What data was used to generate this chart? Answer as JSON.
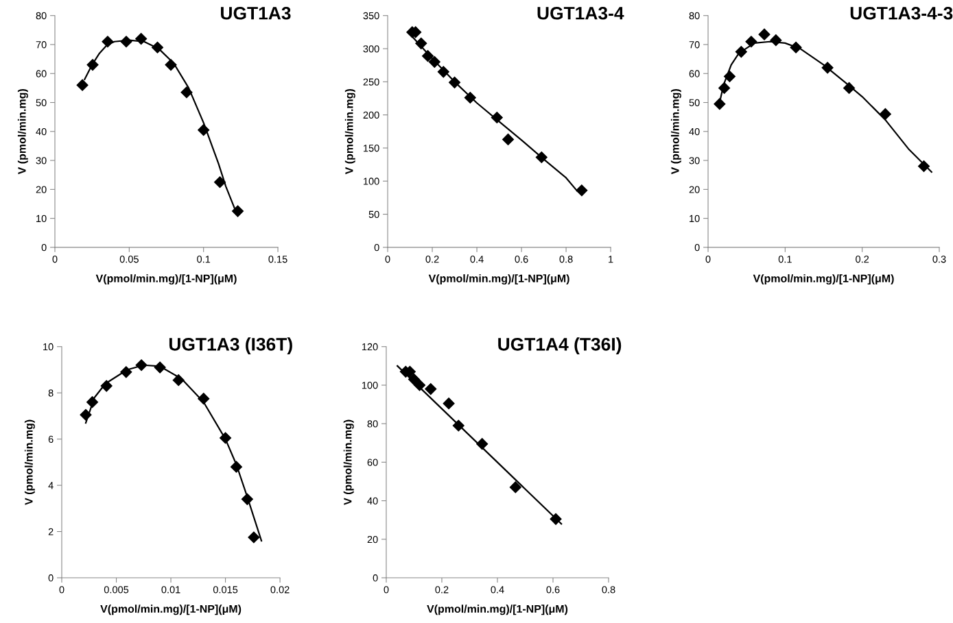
{
  "chart_data": [
    {
      "type": "scatter",
      "title": "UGT1A3",
      "xlabel": "V(pmol/min.mg)/[1-NP](μM)",
      "ylabel": "V (pmol/min.mg)",
      "xlim": [
        0,
        0.15
      ],
      "xticks": [
        0,
        0.05,
        0.1,
        0.15
      ],
      "ylim": [
        0,
        80
      ],
      "yticks": [
        0,
        10,
        20,
        30,
        40,
        50,
        60,
        70,
        80
      ],
      "grid": false,
      "series": [
        {
          "marker": "diamond",
          "color": "#000000",
          "x": [
            0.0185,
            0.0254,
            0.0355,
            0.048,
            0.058,
            0.069,
            0.078,
            0.0886,
            0.1,
            0.111,
            0.123
          ],
          "values": [
            56,
            63,
            71,
            71,
            72,
            69,
            63,
            53.5,
            40.5,
            22.5,
            12.5
          ]
        },
        {
          "type": "line",
          "marker": "none",
          "line_style": "solid",
          "color": "#000000",
          "x": [
            0.02,
            0.025,
            0.03,
            0.035,
            0.04,
            0.05,
            0.06,
            0.07,
            0.08,
            0.09,
            0.1,
            0.11,
            0.115,
            0.122
          ],
          "values": [
            58,
            63,
            67,
            69.8,
            71,
            71.5,
            71,
            68.5,
            63.5,
            55,
            43,
            29,
            21,
            12
          ]
        }
      ]
    },
    {
      "type": "scatter",
      "title": "UGT1A3-4",
      "xlabel": "V(pmol/min.mg)/[1-NP](μM)",
      "ylabel": "V (pmol/min.mg)",
      "xlim": [
        0,
        1
      ],
      "xticks": [
        0,
        0.2,
        0.4,
        0.6,
        0.8,
        1
      ],
      "ylim": [
        0,
        350
      ],
      "yticks": [
        0,
        50,
        100,
        150,
        200,
        250,
        300,
        350
      ],
      "grid": false,
      "series": [
        {
          "marker": "diamond",
          "color": "#000000",
          "x": [
            0.11,
            0.125,
            0.15,
            0.18,
            0.21,
            0.25,
            0.3,
            0.37,
            0.49,
            0.54,
            0.69,
            0.87
          ],
          "values": [
            325,
            325,
            308,
            289,
            280,
            265,
            249,
            226,
            196,
            163,
            136,
            86
          ]
        },
        {
          "type": "line",
          "marker": "none",
          "line_style": "solid",
          "color": "#000000",
          "x": [
            0.1,
            0.2,
            0.3,
            0.4,
            0.5,
            0.6,
            0.7,
            0.8,
            0.85
          ],
          "values": [
            322,
            285,
            250,
            218,
            190,
            162,
            133,
            105,
            85
          ]
        }
      ]
    },
    {
      "type": "scatter",
      "title": "UGT1A3-4-3",
      "xlabel": "V(pmol/min.mg)/[1-NP](μM)",
      "ylabel": "V (pmol/min.mg)",
      "xlim": [
        0,
        0.3
      ],
      "xticks": [
        0,
        0.1,
        0.2,
        0.3
      ],
      "ylim": [
        0,
        80
      ],
      "yticks": [
        0,
        10,
        20,
        30,
        40,
        50,
        60,
        70,
        80
      ],
      "grid": false,
      "series": [
        {
          "marker": "diamond",
          "color": "#000000",
          "x": [
            0.015,
            0.021,
            0.028,
            0.043,
            0.056,
            0.073,
            0.088,
            0.114,
            0.155,
            0.183,
            0.23,
            0.28
          ],
          "values": [
            49.5,
            55,
            59,
            67.5,
            71,
            73.5,
            71.5,
            69,
            62,
            55,
            46,
            28
          ]
        },
        {
          "type": "line",
          "marker": "none",
          "line_style": "solid",
          "color": "#000000",
          "x": [
            0.015,
            0.02,
            0.03,
            0.04,
            0.06,
            0.08,
            0.1,
            0.12,
            0.15,
            0.18,
            0.2,
            0.23,
            0.26,
            0.29
          ],
          "values": [
            50,
            56,
            63,
            67,
            70.5,
            71,
            70.5,
            68.5,
            63,
            56.5,
            52,
            44,
            34,
            26
          ]
        }
      ]
    },
    {
      "type": "scatter",
      "title": "UGT1A3 (I36T)",
      "xlabel": "V(pmol/min.mg)/[1-NP](μM)",
      "ylabel": "V (pmol/min.mg)",
      "xlim": [
        0,
        0.02
      ],
      "xticks": [
        0,
        0.005,
        0.01,
        0.015,
        0.02
      ],
      "ylim": [
        0,
        10
      ],
      "yticks": [
        0,
        2,
        4,
        6,
        8,
        10
      ],
      "grid": false,
      "series": [
        {
          "marker": "diamond",
          "color": "#000000",
          "x": [
            0.0022,
            0.0028,
            0.0041,
            0.0059,
            0.0073,
            0.009,
            0.0107,
            0.013,
            0.015,
            0.016,
            0.017,
            0.0176
          ],
          "values": [
            7.05,
            7.6,
            8.3,
            8.9,
            9.2,
            9.1,
            8.55,
            7.75,
            6.05,
            4.8,
            3.4,
            1.75
          ]
        },
        {
          "type": "line",
          "marker": "none",
          "line_style": "solid",
          "color": "#000000",
          "x": [
            0.0022,
            0.003,
            0.004,
            0.006,
            0.0075,
            0.009,
            0.011,
            0.013,
            0.015,
            0.016,
            0.017,
            0.0183
          ],
          "values": [
            6.7,
            7.8,
            8.4,
            9.0,
            9.2,
            9.15,
            8.6,
            7.6,
            6.0,
            4.9,
            3.5,
            1.6
          ]
        }
      ]
    },
    {
      "type": "scatter",
      "title": "UGT1A4 (T36I)",
      "xlabel": "V(pmol/min.mg)/[1-NP](μM)",
      "ylabel": "V (pmol/min.mg)",
      "xlim": [
        0,
        0.8
      ],
      "xticks": [
        0,
        0.2,
        0.4,
        0.6,
        0.8
      ],
      "ylim": [
        0,
        120
      ],
      "yticks": [
        0,
        20,
        40,
        60,
        80,
        100,
        120
      ],
      "grid": false,
      "series": [
        {
          "marker": "diamond",
          "color": "#000000",
          "x": [
            0.07,
            0.085,
            0.1,
            0.12,
            0.16,
            0.225,
            0.26,
            0.345,
            0.465,
            0.61
          ],
          "values": [
            107,
            107,
            103,
            100,
            98,
            90.5,
            79,
            69.5,
            47,
            30.5
          ]
        },
        {
          "type": "line",
          "marker": "none",
          "line_style": "solid",
          "color": "#000000",
          "x": [
            0.04,
            0.63
          ],
          "values": [
            110,
            28
          ]
        }
      ]
    }
  ]
}
